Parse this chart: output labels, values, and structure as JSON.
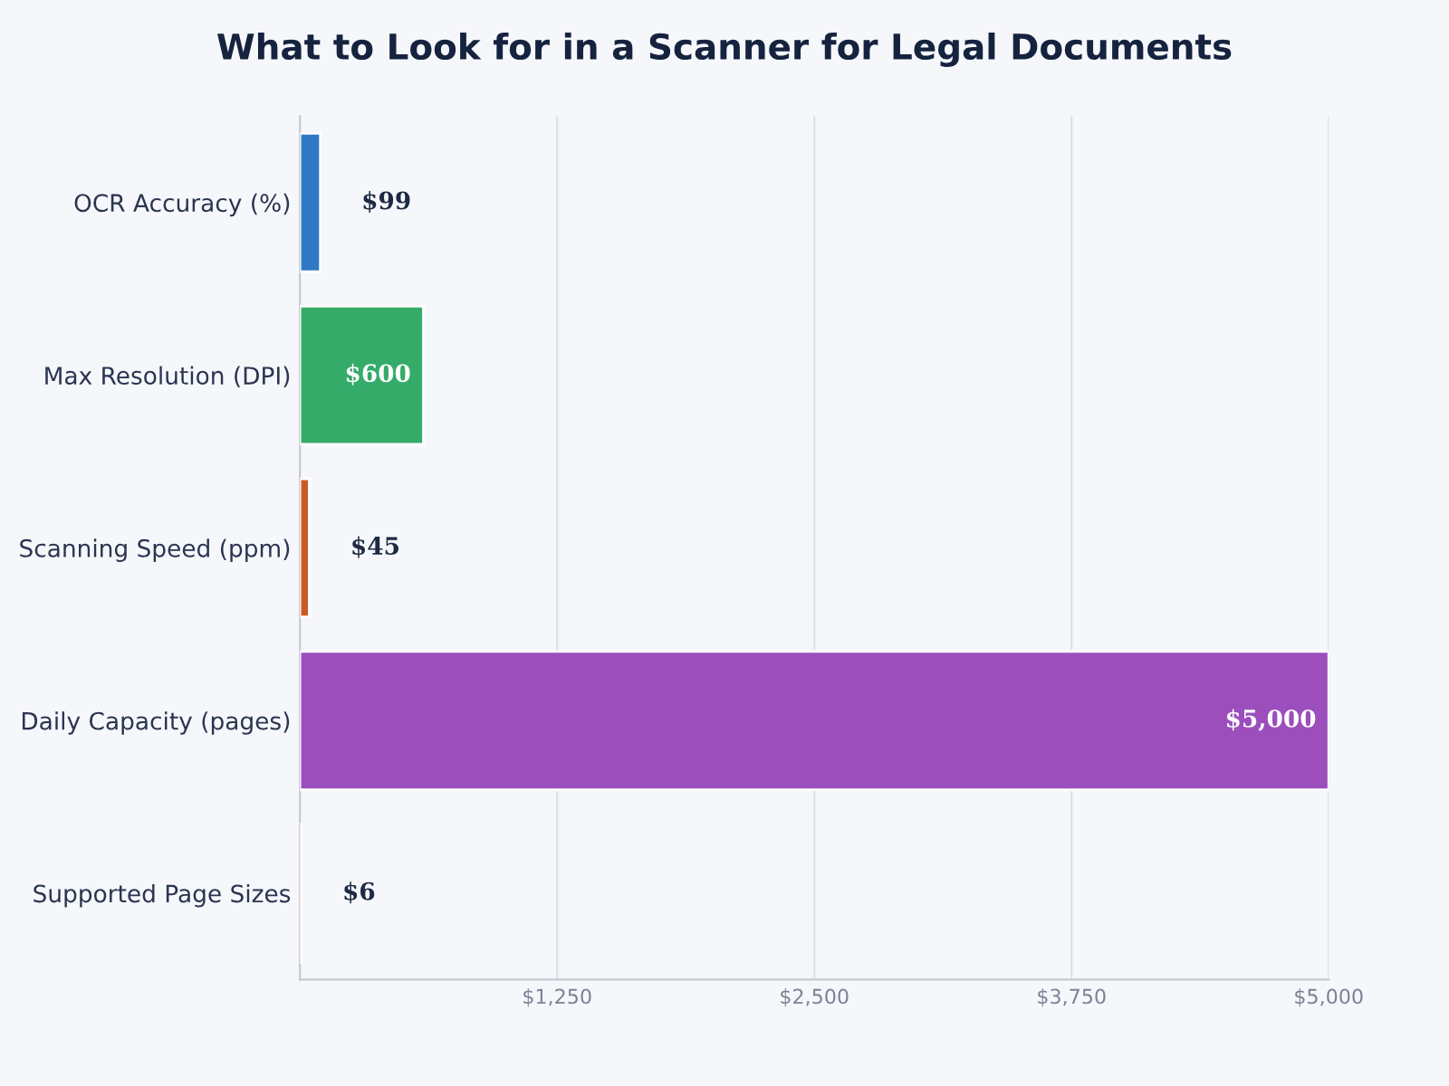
{
  "chart_data": {
    "type": "bar",
    "orientation": "horizontal",
    "title": "What to Look for in a Scanner for Legal Documents",
    "categories": [
      "OCR Accuracy (%)",
      "Max Resolution (DPI)",
      "Scanning Speed (ppm)",
      "Daily Capacity (pages)",
      "Supported Page Sizes"
    ],
    "values": [
      99,
      600,
      45,
      5000,
      6
    ],
    "value_labels": [
      "$99",
      "$600",
      "$45",
      "$5,000",
      "$6"
    ],
    "colors": [
      "#2f78c4",
      "#35ab69",
      "#c95a22",
      "#9b4ebc",
      "#b8292e"
    ],
    "xlim": [
      0,
      5000
    ],
    "xticks": [
      {
        "value": 1250,
        "label": "$1,250"
      },
      {
        "value": 2500,
        "label": "$2,500"
      },
      {
        "value": 3750,
        "label": "$3,750"
      },
      {
        "value": 5000,
        "label": "$5,000"
      }
    ],
    "grid": "x",
    "legend": false
  }
}
